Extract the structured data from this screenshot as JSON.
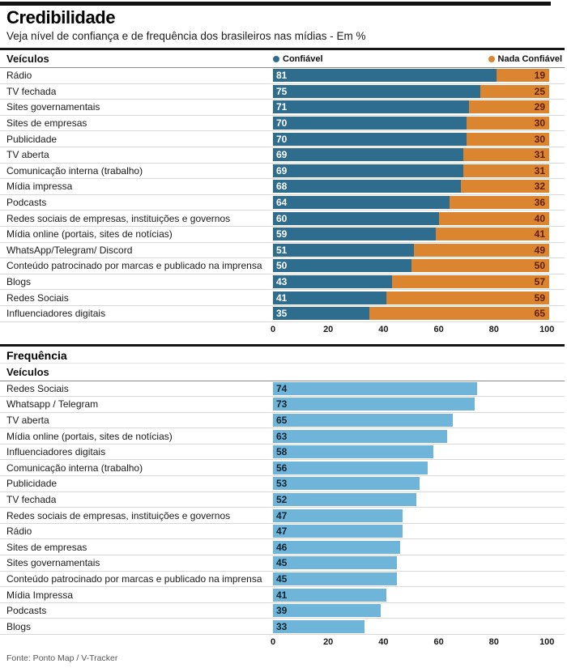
{
  "header": {
    "title": "Credibilidade",
    "subtitle": "Veja nível de confiança e de frequência dos brasileiros nas mídias  - Em %"
  },
  "colors": {
    "confiavel_bar": "#2e6d8e",
    "nada_confiavel_bar": "#dc8531",
    "nada_confiavel_text": "#5e1e07",
    "frequencia_bar": "#6fb4d9",
    "frequencia_text": "#14242e"
  },
  "footer": {
    "source": "Fonte: Ponto Map / V-Tracker"
  },
  "chart_data": [
    {
      "type": "bar",
      "orientation": "horizontal",
      "stacked": true,
      "section_label": "Veículos",
      "legend": [
        {
          "label": "Confiável"
        },
        {
          "label": "Nada Confiável"
        }
      ],
      "legend_position": "top",
      "xlim": [
        0,
        100
      ],
      "ticks": [
        "0",
        "20",
        "40",
        "60",
        "80",
        "100"
      ],
      "grid": false,
      "categories": [
        "Rádio",
        "TV fechada",
        "Sites governamentais",
        "Sites de empresas",
        "Publicidade",
        "TV aberta",
        "Comunicação interna (trabalho)",
        "Mídia impressa",
        "Podcasts",
        "Redes sociais de empresas, instituições e governos",
        "Mídia online (portais, sites de notícias)",
        "WhatsApp/Telegram/ Discord",
        "Conteúdo patrocinado por marcas e publicado na imprensa",
        "Blogs",
        "Redes Sociais",
        "Influenciadores digitais"
      ],
      "series": [
        {
          "name": "Confiável",
          "values": [
            81,
            75,
            71,
            70,
            70,
            69,
            69,
            68,
            64,
            60,
            59,
            51,
            50,
            43,
            41,
            35
          ]
        },
        {
          "name": "Nada Confiável",
          "values": [
            19,
            25,
            29,
            30,
            30,
            31,
            31,
            32,
            36,
            40,
            41,
            49,
            50,
            57,
            59,
            65
          ]
        }
      ]
    },
    {
      "type": "bar",
      "orientation": "horizontal",
      "stacked": false,
      "title": "Frequência",
      "section_label": "Veículos",
      "xlim": [
        0,
        100
      ],
      "ticks": [
        "0",
        "20",
        "40",
        "60",
        "80",
        "100"
      ],
      "grid": false,
      "categories": [
        "Redes Sociais",
        "Whatsapp / Telegram",
        "TV aberta",
        "Mídia online (portais, sites de notícias)",
        "Influenciadores digitais",
        "Comunicação interna (trabalho)",
        "Publicidade",
        "TV fechada",
        "Redes sociais de empresas, instituições e governos",
        "Rádio",
        "Sites de empresas",
        "Sites governamentais",
        "Conteúdo patrocinado por marcas e publicado na imprensa",
        "Mídia Impressa",
        "Podcasts",
        "Blogs"
      ],
      "values": [
        74,
        73,
        65,
        63,
        58,
        56,
        53,
        52,
        47,
        47,
        46,
        45,
        45,
        41,
        39,
        33
      ]
    }
  ]
}
